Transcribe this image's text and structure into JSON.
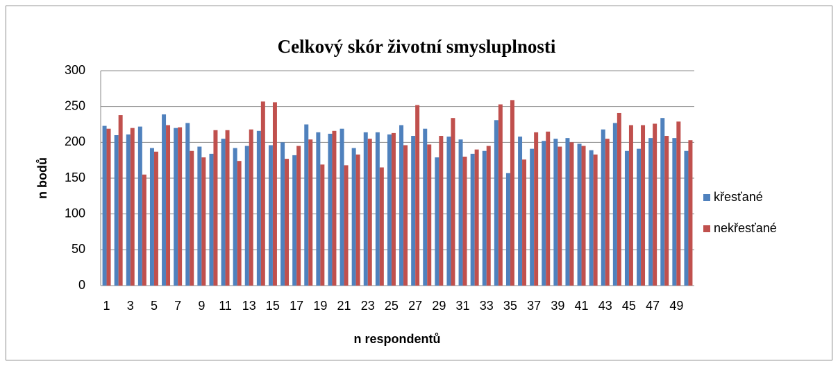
{
  "chart_data": {
    "type": "bar",
    "title": "Celkový skór životní smysluplnosti",
    "xlabel": "n respondentů",
    "ylabel": "n bodů",
    "categories": [
      1,
      null,
      3,
      null,
      5,
      null,
      7,
      null,
      9,
      null,
      11,
      null,
      13,
      null,
      15,
      null,
      17,
      null,
      19,
      null,
      21,
      null,
      23,
      null,
      25,
      null,
      27,
      null,
      29,
      null,
      31,
      null,
      33,
      null,
      35,
      null,
      37,
      null,
      39,
      null,
      41,
      null,
      43,
      null,
      45,
      null,
      47,
      null,
      49,
      null
    ],
    "series": [
      {
        "name": "křesťané",
        "color": "#4f81bd",
        "values": [
          223,
          210,
          211,
          222,
          192,
          239,
          220,
          227,
          194,
          184,
          205,
          192,
          195,
          216,
          196,
          200,
          182,
          225,
          214,
          212,
          219,
          192,
          214,
          214,
          211,
          224,
          209,
          219,
          179,
          208,
          204,
          184,
          188,
          231,
          157,
          208,
          191,
          202,
          205,
          206,
          198,
          189,
          218,
          227,
          188,
          191,
          206,
          234,
          206,
          188
        ]
      },
      {
        "name": "nekřesťané",
        "color": "#c0504d",
        "values": [
          219,
          238,
          220,
          155,
          187,
          224,
          221,
          188,
          179,
          217,
          217,
          174,
          218,
          257,
          256,
          177,
          195,
          204,
          169,
          216,
          168,
          183,
          205,
          165,
          213,
          196,
          252,
          197,
          209,
          234,
          180,
          190,
          195,
          253,
          259,
          176,
          214,
          215,
          194,
          200,
          195,
          183,
          205,
          241,
          224,
          224,
          226,
          209,
          229,
          203
        ]
      }
    ],
    "ylim": [
      0,
      300
    ],
    "yticks": [
      0,
      50,
      100,
      150,
      200,
      250,
      300
    ],
    "grid": true,
    "legend": "right"
  }
}
